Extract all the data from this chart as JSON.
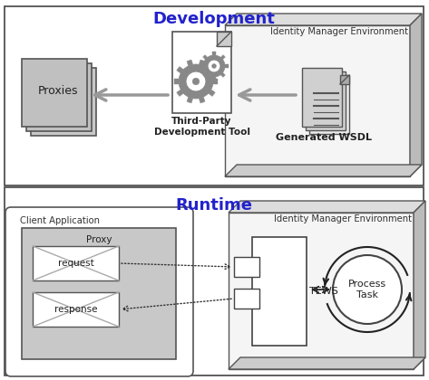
{
  "title_dev": "Development",
  "title_runtime": "Runtime",
  "title_color": "#2222CC",
  "bg_color": "#ffffff",
  "label_proxies": "Proxies",
  "label_dev_tool": "Third-Party\nDevelopment Tool",
  "label_wsdl": "Generated WSDL",
  "label_id_env_dev": "Identity Manager Environment",
  "label_id_env_rt": "Identity Manager Environment",
  "label_client_app": "Client Application",
  "label_proxy": "Proxy",
  "label_request": "request",
  "label_response": "response",
  "label_tews": "TEWS",
  "label_process_task": "Process\nTask"
}
